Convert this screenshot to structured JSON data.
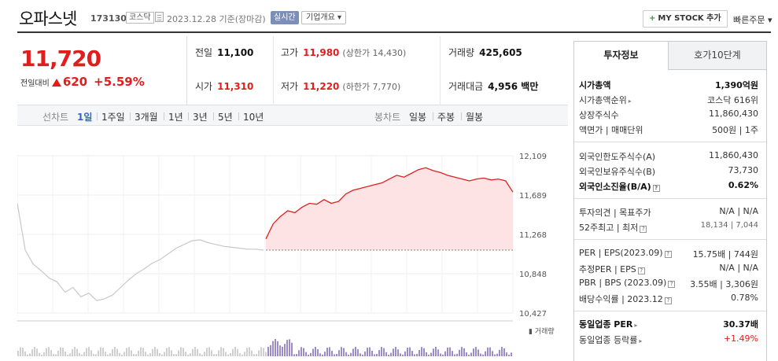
{
  "header": {
    "corp_name": "오파스넷",
    "corp_code": "173130",
    "market": "코스닥",
    "date_text": "2023.12.28 기준(장마감)",
    "realtime_label": "실시간",
    "company_label": "기업개요 ▾",
    "mystock_label": "MY STOCK 추가",
    "quick_order_label": "빠른주문 ▾"
  },
  "quote": {
    "now_price": "11,720",
    "diff_label": "전일대비",
    "diff_amount": "620",
    "diff_rate": "+5.59%",
    "prev_close_label": "전일",
    "prev_close": "11,100",
    "open_label": "시가",
    "open": "11,310",
    "high_label": "고가",
    "high": "11,980",
    "upper_limit": "(상한가 14,430)",
    "low_label": "저가",
    "low": "11,220",
    "lower_limit": "(하한가 7,770)",
    "volume_label": "거래량",
    "volume": "425,605",
    "amount_label": "거래대금",
    "amount": "4,956 백만"
  },
  "chart_tabs": {
    "line_label": "선차트",
    "periods": [
      "1일",
      "1주일",
      "3개월",
      "1년",
      "3년",
      "5년",
      "10년"
    ],
    "candle_label": "봉차트",
    "candles": [
      "일봉",
      "주봉",
      "월봉"
    ]
  },
  "chart_data": {
    "type": "line",
    "y_ticks": [
      "12,109",
      "11,689",
      "11,268",
      "10,848",
      "10,427"
    ],
    "ylim": [
      10427,
      12109
    ],
    "prev_close": 11100,
    "volume_label": "거래량",
    "series": [
      {
        "values": [
          11600,
          11100,
          10950,
          10880,
          10800,
          10760,
          10650,
          10700,
          10600,
          10640,
          10560,
          10580,
          10620,
          10700,
          10780,
          10850,
          10900,
          10960,
          11000,
          11060,
          11120,
          11160,
          11200,
          11210,
          11180,
          11160,
          11140,
          11130,
          11120,
          11110,
          11110,
          11100
        ]
      },
      {
        "values": [
          11220,
          11380,
          11460,
          11520,
          11500,
          11560,
          11600,
          11590,
          11640,
          11600,
          11620,
          11700,
          11740,
          11760,
          11780,
          11800,
          11820,
          11860,
          11900,
          11880,
          11920,
          11960,
          11980,
          11950,
          11930,
          11900,
          11880,
          11860,
          11840,
          11860,
          11870,
          11850,
          11860,
          11840,
          11720
        ]
      }
    ]
  },
  "panel": {
    "tab_invest": "투자정보",
    "tab_hoga": "호가10단계",
    "rows": [
      {
        "k": "시가총액",
        "v": "1,390억원"
      },
      {
        "k": "시가총액순위",
        "v": "코스닥 616위"
      },
      {
        "k": "상장주식수",
        "v": "11,860,430"
      },
      {
        "k": "액면가 | 매매단위",
        "v": "500원 | 1주"
      },
      {
        "k": "외국인한도주식수(A)",
        "v": "11,860,430"
      },
      {
        "k": "외국인보유주식수(B)",
        "v": "73,730"
      },
      {
        "k": "외국인소진율(B/A)",
        "v": "0.62%"
      },
      {
        "k": "투자의견 | 목표주가",
        "v": "N/A | N/A"
      },
      {
        "k": "52주최고 | 최저",
        "v": "18,134 | 7,044"
      },
      {
        "k": "PER | EPS(2023.09)",
        "v": "15.75배 | 744원"
      },
      {
        "k": "추정PER | EPS",
        "v": "N/A | N/A"
      },
      {
        "k": "PBR | BPS (2023.09)",
        "v": "3.55배 | 3,306원"
      },
      {
        "k": "배당수익률 | 2023.12",
        "v": "0.78%"
      },
      {
        "k": "동일업종 PER",
        "v": "30.37배"
      },
      {
        "k": "동일업종 등락률",
        "v": "+1.49%"
      }
    ]
  }
}
